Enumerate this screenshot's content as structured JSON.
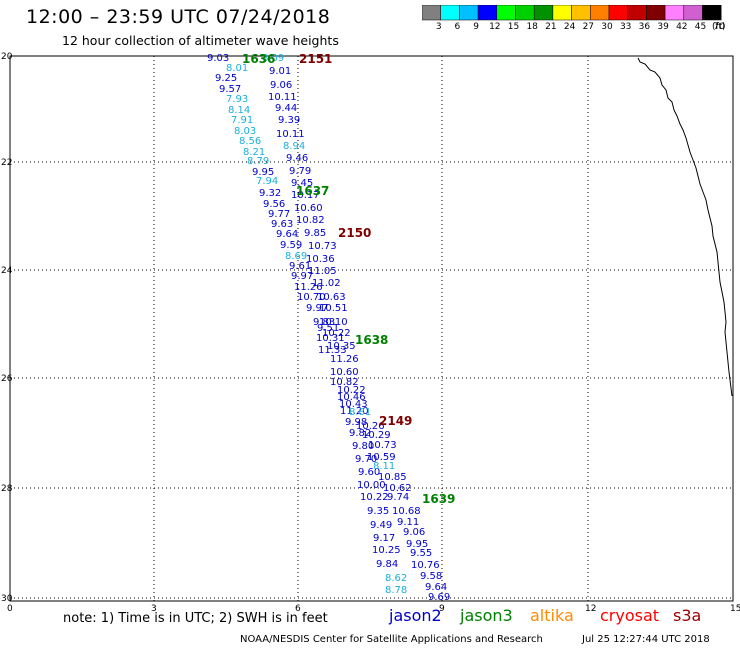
{
  "header": {
    "title": "12:00 – 23:59 UTC 07/24/2018",
    "subtitle": "12 hour collection of altimeter wave heights"
  },
  "colorbar": {
    "colors": [
      "#808080",
      "#00ffff",
      "#00c0ff",
      "#0000ff",
      "#00ff00",
      "#00d000",
      "#009000",
      "#ffff00",
      "#ffc000",
      "#ff8000",
      "#ff0000",
      "#c00000",
      "#800000",
      "#ff80ff",
      "#d060d0",
      "#000000"
    ],
    "labels": [
      "3",
      "6",
      "9",
      "12",
      "15",
      "18",
      "21",
      "24",
      "27",
      "30",
      "33",
      "36",
      "39",
      "42",
      "45",
      "70"
    ],
    "unit": "(ft)"
  },
  "axes": {
    "lat_labels": [
      "20",
      "22",
      "24",
      "26",
      "28",
      "30"
    ],
    "lon_labels": [
      "0",
      "3",
      "6",
      "9",
      "12",
      "15"
    ]
  },
  "times": [
    {
      "text": "1636",
      "color": "#008000"
    },
    {
      "text": "2151",
      "color": "#800000"
    },
    {
      "text": "1637",
      "color": "#008000"
    },
    {
      "text": "2150",
      "color": "#800000"
    },
    {
      "text": "1638",
      "color": "#008000"
    },
    {
      "text": "2149",
      "color": "#800000"
    },
    {
      "text": "1639",
      "color": "#008000"
    }
  ],
  "observations": [
    {
      "v": "9.03",
      "c": "#0000cc"
    },
    {
      "v": "8.09",
      "c": "#1ab0d8"
    },
    {
      "v": "8.01",
      "c": "#1ab0d8"
    },
    {
      "v": "9.01",
      "c": "#0000cc"
    },
    {
      "v": "9.25",
      "c": "#0000cc"
    },
    {
      "v": "9.06",
      "c": "#0000cc"
    },
    {
      "v": "9.57",
      "c": "#0000cc"
    },
    {
      "v": "7.93",
      "c": "#1ab0d8"
    },
    {
      "v": "10.11",
      "c": "#0000cc"
    },
    {
      "v": "8.14",
      "c": "#1ab0d8"
    },
    {
      "v": "9.44",
      "c": "#0000cc"
    },
    {
      "v": "7.91",
      "c": "#1ab0d8"
    },
    {
      "v": "9.39",
      "c": "#0000cc"
    },
    {
      "v": "8.03",
      "c": "#1ab0d8"
    },
    {
      "v": "10.11",
      "c": "#0000cc"
    },
    {
      "v": "8.56",
      "c": "#1ab0d8"
    },
    {
      "v": "8.94",
      "c": "#1ab0d8"
    },
    {
      "v": "8.21",
      "c": "#1ab0d8"
    },
    {
      "v": "9.46",
      "c": "#0000cc"
    },
    {
      "v": "8.79",
      "c": "#1ab0d8"
    },
    {
      "v": "9.79",
      "c": "#0000cc"
    },
    {
      "v": "9.95",
      "c": "#0000cc"
    },
    {
      "v": "7.94",
      "c": "#1ab0d8"
    },
    {
      "v": "9.45",
      "c": "#0000cc"
    },
    {
      "v": "9.32",
      "c": "#0000cc"
    },
    {
      "v": "10.17",
      "c": "#0000cc"
    },
    {
      "v": "9.56",
      "c": "#0000cc"
    },
    {
      "v": "10.60",
      "c": "#0000cc"
    },
    {
      "v": "9.77",
      "c": "#0000cc"
    },
    {
      "v": "10.82",
      "c": "#0000cc"
    },
    {
      "v": "9.63",
      "c": "#0000cc"
    },
    {
      "v": "9.64",
      "c": "#0000cc"
    },
    {
      "v": "9.85",
      "c": "#0000cc"
    },
    {
      "v": "9.59",
      "c": "#0000cc"
    },
    {
      "v": "10.73",
      "c": "#0000cc"
    },
    {
      "v": "8.69",
      "c": "#1ab0d8"
    },
    {
      "v": "10.36",
      "c": "#0000cc"
    },
    {
      "v": "9.61",
      "c": "#0000cc"
    },
    {
      "v": "11.05",
      "c": "#0000cc"
    },
    {
      "v": "9.97",
      "c": "#0000cc"
    },
    {
      "v": "11.02",
      "c": "#0000cc"
    },
    {
      "v": "11.26",
      "c": "#0000cc"
    },
    {
      "v": "10.70",
      "c": "#0000cc"
    },
    {
      "v": "10.63",
      "c": "#0000cc"
    },
    {
      "v": "9.97",
      "c": "#0000cc"
    },
    {
      "v": "10.51",
      "c": "#0000cc"
    },
    {
      "v": "9.83",
      "c": "#0000cc"
    },
    {
      "v": "10.10",
      "c": "#0000cc"
    },
    {
      "v": "9.51",
      "c": "#0000cc"
    },
    {
      "v": "10.22",
      "c": "#0000cc"
    },
    {
      "v": "10.31",
      "c": "#0000cc"
    },
    {
      "v": "10.35",
      "c": "#0000cc"
    },
    {
      "v": "11.33",
      "c": "#0000cc"
    },
    {
      "v": "11.26",
      "c": "#0000cc"
    },
    {
      "v": "10.60",
      "c": "#0000cc"
    },
    {
      "v": "10.82",
      "c": "#0000cc"
    },
    {
      "v": "10.22",
      "c": "#0000cc"
    },
    {
      "v": "10.46",
      "c": "#0000cc"
    },
    {
      "v": "10.43",
      "c": "#0000cc"
    },
    {
      "v": "11.20",
      "c": "#0000cc"
    },
    {
      "v": "8.81",
      "c": "#1ab0d8"
    },
    {
      "v": "9.98",
      "c": "#0000cc"
    },
    {
      "v": "10.26",
      "c": "#0000cc"
    },
    {
      "v": "9.82",
      "c": "#0000cc"
    },
    {
      "v": "10.29",
      "c": "#0000cc"
    },
    {
      "v": "9.80",
      "c": "#0000cc"
    },
    {
      "v": "10.73",
      "c": "#0000cc"
    },
    {
      "v": "9.70",
      "c": "#0000cc"
    },
    {
      "v": "10.59",
      "c": "#0000cc"
    },
    {
      "v": "9.60",
      "c": "#0000cc"
    },
    {
      "v": "8.11",
      "c": "#1ab0d8"
    },
    {
      "v": "10.85",
      "c": "#0000cc"
    },
    {
      "v": "10.00",
      "c": "#0000cc"
    },
    {
      "v": "10.62",
      "c": "#0000cc"
    },
    {
      "v": "10.22",
      "c": "#0000cc"
    },
    {
      "v": "9.74",
      "c": "#0000cc"
    },
    {
      "v": "9.35",
      "c": "#0000cc"
    },
    {
      "v": "10.68",
      "c": "#0000cc"
    },
    {
      "v": "9.11",
      "c": "#0000cc"
    },
    {
      "v": "9.49",
      "c": "#0000cc"
    },
    {
      "v": "9.06",
      "c": "#0000cc"
    },
    {
      "v": "9.17",
      "c": "#0000cc"
    },
    {
      "v": "9.95",
      "c": "#0000cc"
    },
    {
      "v": "10.25",
      "c": "#0000cc"
    },
    {
      "v": "9.55",
      "c": "#0000cc"
    },
    {
      "v": "9.84",
      "c": "#0000cc"
    },
    {
      "v": "10.76",
      "c": "#0000cc"
    },
    {
      "v": "8.62",
      "c": "#1ab0d8"
    },
    {
      "v": "9.58",
      "c": "#0000cc"
    },
    {
      "v": "9.64",
      "c": "#0000cc"
    },
    {
      "v": "8.78",
      "c": "#1ab0d8"
    },
    {
      "v": "9.69",
      "c": "#0000cc"
    }
  ],
  "footer": {
    "note": "note:  1) Time is in UTC;  2) SWH is in feet",
    "satellites": [
      {
        "name": "jason2",
        "color": "#0000cc"
      },
      {
        "name": "jason3",
        "color": "#008000"
      },
      {
        "name": "altika",
        "color": "#ff8c00"
      },
      {
        "name": "cryosat",
        "color": "#ff0000"
      },
      {
        "name": "s3a",
        "color": "#a00000"
      }
    ],
    "credit": "NOAA/NESDIS Center for Satellite Applications and Research",
    "timestamp": "Jul 25 12:27:44 UTC 2018"
  }
}
